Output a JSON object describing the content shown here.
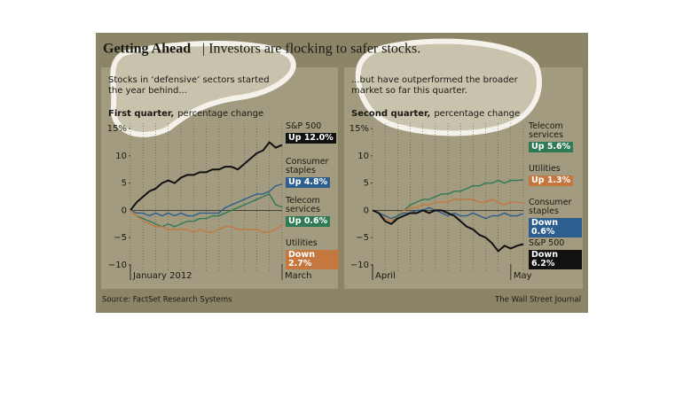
{
  "header": {
    "title_bold": "Getting Ahead",
    "title": "| Investors are flocking to safer stocks."
  },
  "chart_data": [
    {
      "type": "line",
      "subtitle": "Stocks in ‘defensive’ sectors started the year behind...",
      "axis_title_bold": "First quarter,",
      "axis_title": "percentage change",
      "categories": [
        "January 2012",
        null,
        null,
        null,
        null,
        null,
        null,
        null,
        null,
        null,
        null,
        null,
        null,
        null,
        null,
        null,
        null,
        null,
        null,
        null,
        null,
        null,
        null,
        null,
        "March"
      ],
      "ylim": [
        -11,
        16
      ],
      "yticks": [
        {
          "value": 15,
          "label": "15%"
        },
        10,
        5,
        0,
        {
          "value": -5,
          "label": "−5"
        },
        {
          "value": -10,
          "label": "−10"
        }
      ],
      "series": [
        {
          "name": "S&P 500",
          "color": "#111111",
          "values": [
            0,
            1.5,
            2.5,
            3.5,
            4,
            5,
            5.5,
            5,
            6,
            6.5,
            6.5,
            7,
            7,
            7.5,
            7.5,
            8,
            8,
            7.5,
            8.5,
            9.5,
            10.5,
            11,
            12.5,
            11.5,
            12.0
          ],
          "value_labels": [
            null,
            null,
            null,
            null,
            null,
            null,
            null,
            null,
            null,
            null,
            null,
            null,
            null,
            null,
            null,
            null,
            null,
            null,
            null,
            null,
            null,
            null,
            null,
            null,
            "Up 12.0%"
          ]
        },
        {
          "name": "Consumer staples",
          "color": "#2c5f8f",
          "values": [
            0,
            -0.5,
            -0.5,
            -1,
            -0.5,
            -1,
            -0.5,
            -1,
            -0.5,
            -1,
            -1,
            -0.5,
            -0.5,
            -0.5,
            -0.5,
            0.5,
            1,
            1.5,
            2,
            2.5,
            3,
            3,
            3.5,
            4.5,
            4.8
          ],
          "value_labels": [
            null,
            null,
            null,
            null,
            null,
            null,
            null,
            null,
            null,
            null,
            null,
            null,
            null,
            null,
            null,
            null,
            null,
            null,
            null,
            null,
            null,
            null,
            null,
            null,
            "Up 4.8%"
          ]
        },
        {
          "name": "Telecom services",
          "color": "#2f7a55",
          "values": [
            0,
            -1,
            -1.5,
            -2,
            -2.5,
            -3,
            -2.5,
            -3,
            -2.5,
            -2,
            -2,
            -1.5,
            -1.5,
            -1,
            -1,
            -0.5,
            0,
            0.5,
            1,
            1.5,
            2,
            2.5,
            3,
            1,
            0.6
          ],
          "value_labels": [
            null,
            null,
            null,
            null,
            null,
            null,
            null,
            null,
            null,
            null,
            null,
            null,
            null,
            null,
            null,
            null,
            null,
            null,
            null,
            null,
            null,
            null,
            null,
            null,
            "Up 0.6%"
          ]
        },
        {
          "name": "Utilities",
          "color": "#c4773f",
          "values": [
            0,
            -1,
            -2,
            -2.5,
            -3,
            -3,
            -3.5,
            -3.5,
            -3.5,
            -3.5,
            -4,
            -3.5,
            -4,
            -4,
            -3.5,
            -3,
            -3,
            -3.5,
            -3.5,
            -3.5,
            -3.5,
            -4,
            -4,
            -3.5,
            -2.7
          ],
          "value_labels": [
            null,
            null,
            null,
            null,
            null,
            null,
            null,
            null,
            null,
            null,
            null,
            null,
            null,
            null,
            null,
            null,
            null,
            null,
            null,
            null,
            null,
            null,
            null,
            null,
            "Down 2.7%"
          ]
        }
      ]
    },
    {
      "type": "line",
      "subtitle": "...but have outperformed the broader market so far this quarter.",
      "axis_title_bold": "Second quarter,",
      "axis_title": "percentage change",
      "categories": [
        "April",
        null,
        null,
        null,
        null,
        null,
        null,
        null,
        null,
        null,
        null,
        null,
        null,
        null,
        null,
        null,
        null,
        null,
        null,
        null,
        null,
        null,
        "May",
        null,
        null
      ],
      "ylim": [
        -11,
        16
      ],
      "yticks": [
        {
          "value": 15,
          "label": "15%"
        },
        10,
        5,
        0,
        {
          "value": -5,
          "label": "−5"
        },
        {
          "value": -10,
          "label": "−10"
        }
      ],
      "series": [
        {
          "name": "Telecom services",
          "color": "#2f7a55",
          "values": [
            0,
            -0.5,
            -2,
            -2.5,
            -1,
            0,
            1,
            1.5,
            2,
            2,
            2.5,
            3,
            3,
            3.5,
            3.5,
            4,
            4.5,
            4.5,
            5,
            5,
            5.5,
            5,
            5.5,
            5.5,
            5.6
          ],
          "value_labels": [
            null,
            null,
            null,
            null,
            null,
            null,
            null,
            null,
            null,
            null,
            null,
            null,
            null,
            null,
            null,
            null,
            null,
            null,
            null,
            null,
            null,
            null,
            null,
            null,
            "Up 5.6%"
          ]
        },
        {
          "name": "Utilities",
          "color": "#c4773f",
          "values": [
            0,
            -0.5,
            -1.5,
            -2,
            -1,
            0,
            0.5,
            0.5,
            1,
            1,
            1.5,
            1.5,
            1.5,
            2,
            2,
            2,
            2,
            1.5,
            1.5,
            2,
            1.5,
            1,
            1.5,
            1.5,
            1.3
          ],
          "value_labels": [
            null,
            null,
            null,
            null,
            null,
            null,
            null,
            null,
            null,
            null,
            null,
            null,
            null,
            null,
            null,
            null,
            null,
            null,
            null,
            null,
            null,
            null,
            null,
            null,
            "Up 1.3%"
          ]
        },
        {
          "name": "Consumer staples",
          "color": "#2c5f8f",
          "values": [
            0,
            -0.5,
            -1,
            -1.5,
            -1,
            -0.5,
            -0.5,
            0,
            0,
            0.5,
            0,
            -0.5,
            -1,
            -0.5,
            -1,
            -1,
            -0.5,
            -1,
            -1.5,
            -1,
            -1,
            -0.5,
            -1,
            -1,
            -0.6
          ],
          "value_labels": [
            null,
            null,
            null,
            null,
            null,
            null,
            null,
            null,
            null,
            null,
            null,
            null,
            null,
            null,
            null,
            null,
            null,
            null,
            null,
            null,
            null,
            null,
            null,
            null,
            "Down 0.6%"
          ]
        },
        {
          "name": "S&P 500",
          "color": "#111111",
          "values": [
            0,
            -0.5,
            -2,
            -2.5,
            -1.5,
            -1,
            -0.5,
            -0.5,
            0,
            -0.5,
            0,
            0,
            -0.5,
            -1,
            -2,
            -3,
            -3.5,
            -4.5,
            -5,
            -6,
            -7.5,
            -6.5,
            -7,
            -6.5,
            -6.2
          ],
          "value_labels": [
            null,
            null,
            null,
            null,
            null,
            null,
            null,
            null,
            null,
            null,
            null,
            null,
            null,
            null,
            null,
            null,
            null,
            null,
            null,
            null,
            null,
            null,
            null,
            null,
            "Down 6.2%"
          ]
        }
      ]
    }
  ],
  "source": "Source: FactSet Research Systems",
  "credit": "The Wall Street Journal"
}
